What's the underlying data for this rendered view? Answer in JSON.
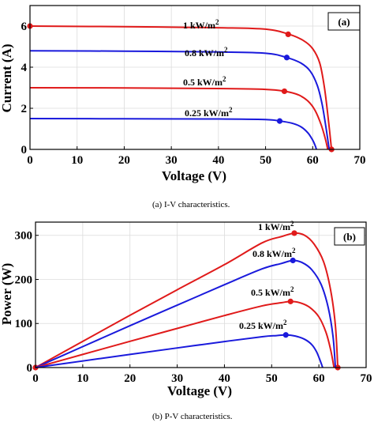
{
  "colors": {
    "red": "#e01a1a",
    "blue": "#1a1adc"
  },
  "chart_data": [
    {
      "type": "line",
      "panel_label": "(a)",
      "caption": "(a)    I-V characteristics.",
      "xlabel": "Voltage (V)",
      "ylabel": "Current (A)",
      "xlim": [
        0,
        70
      ],
      "ylim": [
        0,
        7
      ],
      "xticks": [
        0,
        10,
        20,
        30,
        40,
        50,
        60,
        70
      ],
      "yticks": [
        0,
        2,
        4,
        6
      ],
      "grid": true,
      "series": [
        {
          "name": "1 kW/m",
          "sup": "2",
          "color": "red",
          "points": [
            [
              0,
              6.0
            ],
            [
              20,
              5.97
            ],
            [
              40,
              5.92
            ],
            [
              50,
              5.85
            ],
            [
              55,
              5.6
            ],
            [
              58,
              5.3
            ],
            [
              60,
              4.9
            ],
            [
              61.5,
              4.2
            ],
            [
              62.5,
              3.0
            ],
            [
              63.3,
              1.5
            ],
            [
              64,
              0
            ]
          ],
          "markers": [
            [
              0,
              6.0
            ],
            [
              54.8,
              5.6
            ],
            [
              64,
              0
            ]
          ]
        },
        {
          "name": "0.8 kW/m",
          "sup": "2",
          "color": "blue",
          "points": [
            [
              0,
              4.8
            ],
            [
              20,
              4.78
            ],
            [
              40,
              4.74
            ],
            [
              50,
              4.68
            ],
            [
              54.5,
              4.47
            ],
            [
              57.5,
              4.2
            ],
            [
              59.5,
              3.8
            ],
            [
              61,
              3.1
            ],
            [
              62,
              2.2
            ],
            [
              62.8,
              1.1
            ],
            [
              63.5,
              0
            ]
          ],
          "markers": [
            [
              54.5,
              4.47
            ]
          ]
        },
        {
          "name": "0.5 kW/m",
          "sup": "2",
          "color": "red",
          "points": [
            [
              0,
              3.0
            ],
            [
              20,
              2.99
            ],
            [
              40,
              2.96
            ],
            [
              50,
              2.92
            ],
            [
              54,
              2.83
            ],
            [
              57,
              2.65
            ],
            [
              59,
              2.35
            ],
            [
              60.5,
              1.9
            ],
            [
              61.8,
              1.2
            ],
            [
              62.7,
              0.5
            ],
            [
              63.2,
              0
            ]
          ],
          "markers": [
            [
              54,
              2.83
            ]
          ]
        },
        {
          "name": "0.25 kW/m",
          "sup": "2",
          "color": "blue",
          "points": [
            [
              0,
              1.5
            ],
            [
              20,
              1.49
            ],
            [
              40,
              1.48
            ],
            [
              50,
              1.45
            ],
            [
              53,
              1.38
            ],
            [
              55.5,
              1.28
            ],
            [
              57.5,
              1.1
            ],
            [
              59,
              0.8
            ],
            [
              60,
              0.45
            ],
            [
              60.5,
              0.2
            ],
            [
              60.8,
              0
            ]
          ],
          "markers": [
            [
              53,
              1.38
            ]
          ]
        }
      ]
    },
    {
      "type": "line",
      "panel_label": "(b)",
      "caption": "(b)    P-V characteristics.",
      "xlabel": "Voltage (V)",
      "ylabel": "Power (W)",
      "xlim": [
        0,
        70
      ],
      "ylim": [
        0,
        330
      ],
      "xticks": [
        0,
        10,
        20,
        30,
        40,
        50,
        60,
        70
      ],
      "yticks": [
        0,
        100,
        200,
        300
      ],
      "grid": true,
      "series": [
        {
          "name": "1 kW/m",
          "sup": "2",
          "color": "red",
          "points": [
            [
              0,
              0
            ],
            [
              10,
              59.5
            ],
            [
              20,
              118.5
            ],
            [
              30,
              176.5
            ],
            [
              40,
              233.5
            ],
            [
              48,
              283
            ],
            [
              52,
              297
            ],
            [
              54.8,
              305
            ],
            [
              57,
              300
            ],
            [
              59,
              280
            ],
            [
              61,
              240
            ],
            [
              62.5,
              175
            ],
            [
              63.5,
              95
            ],
            [
              64,
              0
            ]
          ],
          "markers": [
            [
              0,
              0
            ],
            [
              54.8,
              305
            ],
            [
              64,
              0
            ]
          ]
        },
        {
          "name": "0.8 kW/m",
          "sup": "2",
          "color": "blue",
          "points": [
            [
              0,
              0
            ],
            [
              10,
              47.5
            ],
            [
              20,
              95
            ],
            [
              30,
              141.5
            ],
            [
              40,
              188
            ],
            [
              48,
              224
            ],
            [
              52,
              236
            ],
            [
              54.5,
              243
            ],
            [
              56.5,
              238
            ],
            [
              58.5,
              222
            ],
            [
              60.5,
              188
            ],
            [
              62,
              135
            ],
            [
              63,
              70
            ],
            [
              63.5,
              0
            ]
          ],
          "markers": [
            [
              54.5,
              243
            ]
          ]
        },
        {
          "name": "0.5 kW/m",
          "sup": "2",
          "color": "red",
          "points": [
            [
              0,
              0
            ],
            [
              10,
              29.8
            ],
            [
              20,
              59.5
            ],
            [
              30,
              88.8
            ],
            [
              40,
              118
            ],
            [
              48,
              140
            ],
            [
              52,
              147
            ],
            [
              54,
              150
            ],
            [
              56,
              147
            ],
            [
              58,
              137
            ],
            [
              60,
              115
            ],
            [
              61.5,
              80
            ],
            [
              62.5,
              40
            ],
            [
              63.2,
              0
            ]
          ],
          "markers": [
            [
              54,
              150
            ]
          ]
        },
        {
          "name": "0.25 kW/m",
          "sup": "2",
          "color": "blue",
          "points": [
            [
              0,
              0
            ],
            [
              10,
              14.9
            ],
            [
              20,
              29.8
            ],
            [
              30,
              44.5
            ],
            [
              40,
              59
            ],
            [
              48,
              70
            ],
            [
              51,
              72.5
            ],
            [
              53,
              74
            ],
            [
              55,
              71.5
            ],
            [
              57,
              64
            ],
            [
              58.5,
              52
            ],
            [
              59.5,
              36
            ],
            [
              60.3,
              15
            ],
            [
              60.8,
              0
            ]
          ],
          "markers": [
            [
              53,
              74
            ]
          ]
        }
      ]
    }
  ]
}
